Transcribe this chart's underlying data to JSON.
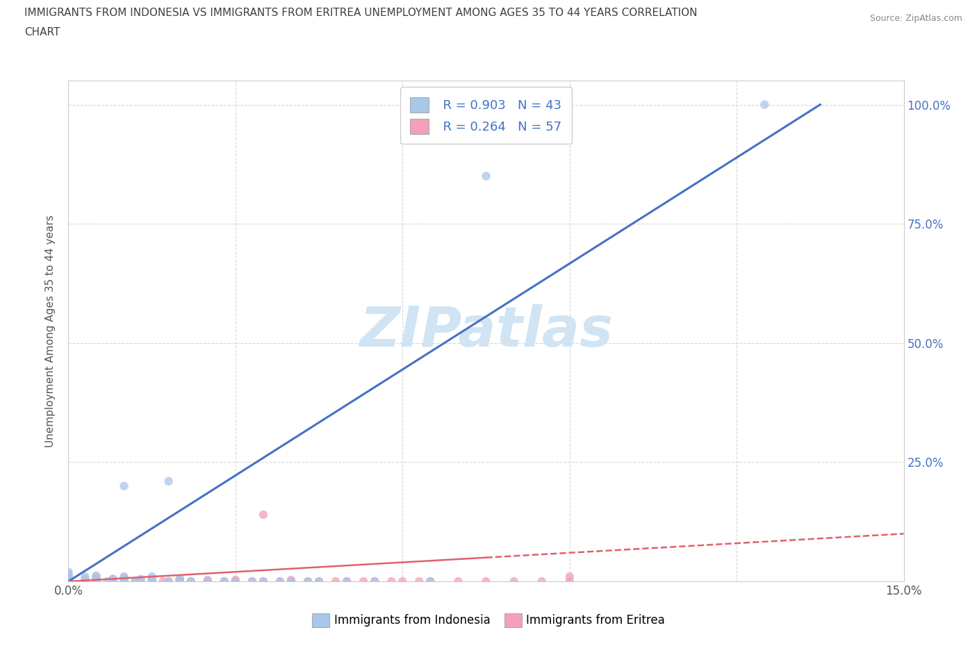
{
  "title_line1": "IMMIGRANTS FROM INDONESIA VS IMMIGRANTS FROM ERITREA UNEMPLOYMENT AMONG AGES 35 TO 44 YEARS CORRELATION",
  "title_line2": "CHART",
  "source": "Source: ZipAtlas.com",
  "ylabel": "Unemployment Among Ages 35 to 44 years",
  "xlim": [
    0.0,
    0.15
  ],
  "ylim": [
    0.0,
    1.05
  ],
  "watermark": "ZIPatlas",
  "color_indonesia": "#a8c8e8",
  "color_eritrea": "#f4a0b8",
  "color_indonesia_line": "#4472c4",
  "color_eritrea_line": "#e06070",
  "color_title": "#404040",
  "color_source": "#888888",
  "color_watermark": "#d0e4f4",
  "color_legend_text_blue": "#4472c4",
  "background_color": "#ffffff",
  "grid_color": "#d8d8d8",
  "indo_scatter_x": [
    0.0,
    0.0,
    0.0,
    0.0,
    0.0,
    0.0,
    0.0,
    0.003,
    0.003,
    0.005,
    0.005,
    0.005,
    0.007,
    0.008,
    0.008,
    0.01,
    0.01,
    0.01,
    0.012,
    0.013,
    0.015,
    0.015,
    0.015,
    0.018,
    0.02,
    0.02,
    0.022,
    0.025,
    0.028,
    0.03,
    0.033,
    0.035,
    0.038,
    0.04,
    0.043,
    0.045,
    0.05,
    0.055,
    0.01,
    0.018,
    0.065,
    0.075,
    0.125
  ],
  "indo_scatter_y": [
    0.0,
    0.0,
    0.0,
    0.005,
    0.01,
    0.015,
    0.02,
    0.0,
    0.01,
    0.0,
    0.005,
    0.012,
    0.0,
    0.0,
    0.005,
    0.0,
    0.005,
    0.01,
    0.0,
    0.005,
    0.0,
    0.005,
    0.01,
    0.0,
    0.0,
    0.005,
    0.0,
    0.0,
    0.0,
    0.0,
    0.0,
    0.0,
    0.0,
    0.0,
    0.0,
    0.0,
    0.0,
    0.0,
    0.2,
    0.21,
    0.0,
    0.85,
    1.0
  ],
  "erit_scatter_x": [
    0.0,
    0.0,
    0.0,
    0.0,
    0.0,
    0.0,
    0.0,
    0.0,
    0.003,
    0.003,
    0.005,
    0.005,
    0.005,
    0.005,
    0.008,
    0.008,
    0.01,
    0.01,
    0.01,
    0.01,
    0.012,
    0.013,
    0.015,
    0.015,
    0.017,
    0.018,
    0.02,
    0.02,
    0.02,
    0.022,
    0.025,
    0.025,
    0.028,
    0.03,
    0.03,
    0.033,
    0.035,
    0.038,
    0.04,
    0.04,
    0.043,
    0.045,
    0.048,
    0.05,
    0.053,
    0.055,
    0.058,
    0.06,
    0.063,
    0.065,
    0.07,
    0.075,
    0.08,
    0.085,
    0.09,
    0.035,
    0.09
  ],
  "erit_scatter_y": [
    0.0,
    0.0,
    0.0,
    0.003,
    0.005,
    0.008,
    0.01,
    0.015,
    0.0,
    0.005,
    0.0,
    0.003,
    0.005,
    0.01,
    0.0,
    0.005,
    0.0,
    0.003,
    0.005,
    0.008,
    0.0,
    0.003,
    0.0,
    0.005,
    0.0,
    0.0,
    0.0,
    0.003,
    0.005,
    0.0,
    0.0,
    0.003,
    0.0,
    0.0,
    0.003,
    0.0,
    0.0,
    0.0,
    0.0,
    0.003,
    0.0,
    0.0,
    0.0,
    0.0,
    0.0,
    0.0,
    0.0,
    0.0,
    0.0,
    0.0,
    0.0,
    0.0,
    0.0,
    0.0,
    0.0,
    0.14,
    0.01
  ],
  "indo_line_x": [
    0.0,
    0.135
  ],
  "indo_line_y": [
    0.0,
    1.0
  ],
  "erit_line_x": [
    0.0,
    0.15
  ],
  "erit_line_y": [
    0.0,
    0.1
  ],
  "dot_size": 80
}
